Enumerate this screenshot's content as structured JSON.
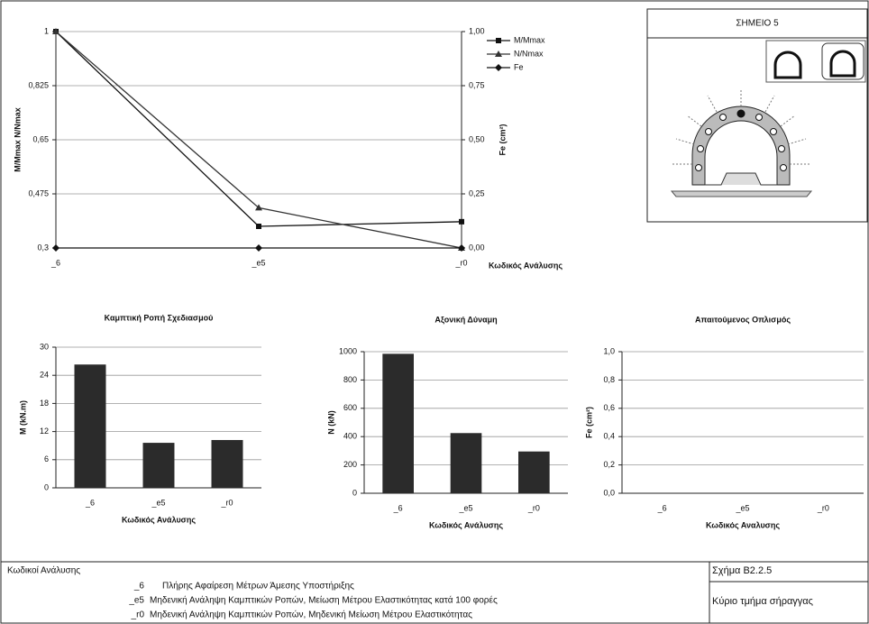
{
  "chart_data": [
    {
      "type": "line",
      "x_label": "Κωδικός Ανάλυσης",
      "y_label": "M/Mmax  N/Nmax",
      "y2_label": "Fe (cm²)",
      "categories": [
        "_6",
        "_e5",
        "_r0"
      ],
      "ylim": [
        0.3,
        1
      ],
      "yticks": [
        {
          "value": 0.3,
          "label": "0,3"
        },
        {
          "value": 0.475,
          "label": "0,475"
        },
        {
          "value": 0.65,
          "label": "0,65"
        },
        {
          "value": 0.825,
          "label": "0,825"
        },
        1
      ],
      "y2lim": [
        0,
        1
      ],
      "y2ticks": [
        {
          "value": 0,
          "label": "0,00"
        },
        {
          "value": 0.25,
          "label": "0,25"
        },
        {
          "value": 0.5,
          "label": "0,50"
        },
        {
          "value": 0.75,
          "label": "0,75"
        },
        {
          "value": 1,
          "label": "1,00"
        }
      ],
      "grid": true,
      "legend": "upper right",
      "series": [
        {
          "name": "M/Mmax",
          "color": "#111111",
          "marker": "square",
          "values": [
            1,
            0.37,
            0.385
          ]
        },
        {
          "name": "N/Nmax",
          "color": "#333333",
          "marker": "triangle",
          "values": [
            1,
            0.43,
            0.3
          ]
        },
        {
          "name": "Fe",
          "color": "#111111",
          "marker": "diamond",
          "axis": "y2",
          "values": [
            0,
            0,
            0
          ]
        }
      ]
    },
    {
      "type": "bar",
      "title": "Καμπτική Ροπή Σχεδιασμού",
      "y_label": "M (kN.m)",
      "x_label": "Κωδικός Ανάλυσης",
      "categories": [
        "_6",
        "_e5",
        "_r0"
      ],
      "values": [
        26.3,
        9.6,
        10.2
      ],
      "color": "#2b2b2b",
      "ylim": [
        0,
        30
      ],
      "yticks": [
        0,
        6,
        12,
        18,
        24,
        30
      ],
      "grid": true
    },
    {
      "type": "bar",
      "title": "Αξονική Δύναμη",
      "y_label": "N (kN)",
      "x_label": "Κωδικός Ανάλυσης",
      "categories": [
        "_6",
        "_e5",
        "_r0"
      ],
      "values": [
        985,
        425,
        295
      ],
      "color": "#2b2b2b",
      "ylim": [
        0,
        1000
      ],
      "yticks": [
        0,
        200,
        400,
        600,
        800,
        1000
      ],
      "grid": true
    },
    {
      "type": "bar",
      "title": "Απαιτούμενος Οπλισμός",
      "y_label": "Fe (cm²)",
      "x_label": "Κωδικός Αναλυσης",
      "categories": [
        "_6",
        "_e5",
        "_r0"
      ],
      "values": [
        0,
        0,
        0
      ],
      "color": "#2b2b2b",
      "ylim": [
        0,
        1
      ],
      "yticks": [
        {
          "value": 0,
          "label": "0,0"
        },
        {
          "value": 0.2,
          "label": "0,2"
        },
        {
          "value": 0.4,
          "label": "0,4"
        },
        {
          "value": 0.6,
          "label": "0,6"
        },
        {
          "value": 0.8,
          "label": "0,8"
        },
        {
          "value": 1,
          "label": "1,0"
        }
      ],
      "grid": true
    }
  ],
  "panel": {
    "title": "ΣΗΜΕΙΟ 5"
  },
  "footer": {
    "heading": "Κωδικοί Ανάλυσης",
    "codes": [
      {
        "code": "_6",
        "description": "Πλήρης Αφαίρεση Μέτρων Άμεσης Υποστήριξης"
      },
      {
        "code": "_e5",
        "description": "Μηδενική Ανάληψη Καμπτικών Ροπών, Μείωση Μέτρου Ελαστικότητας κατά 100 φορές"
      },
      {
        "code": "_r0",
        "description": "Μηδενική Ανάληψη Καμπτικών Ροπών, Μηδενική Μείωση Μέτρου Ελαστικότητας"
      }
    ],
    "figure": "Σχήμα Β2.2.5",
    "caption": "Κύριο τμήμα σήραγγας"
  }
}
